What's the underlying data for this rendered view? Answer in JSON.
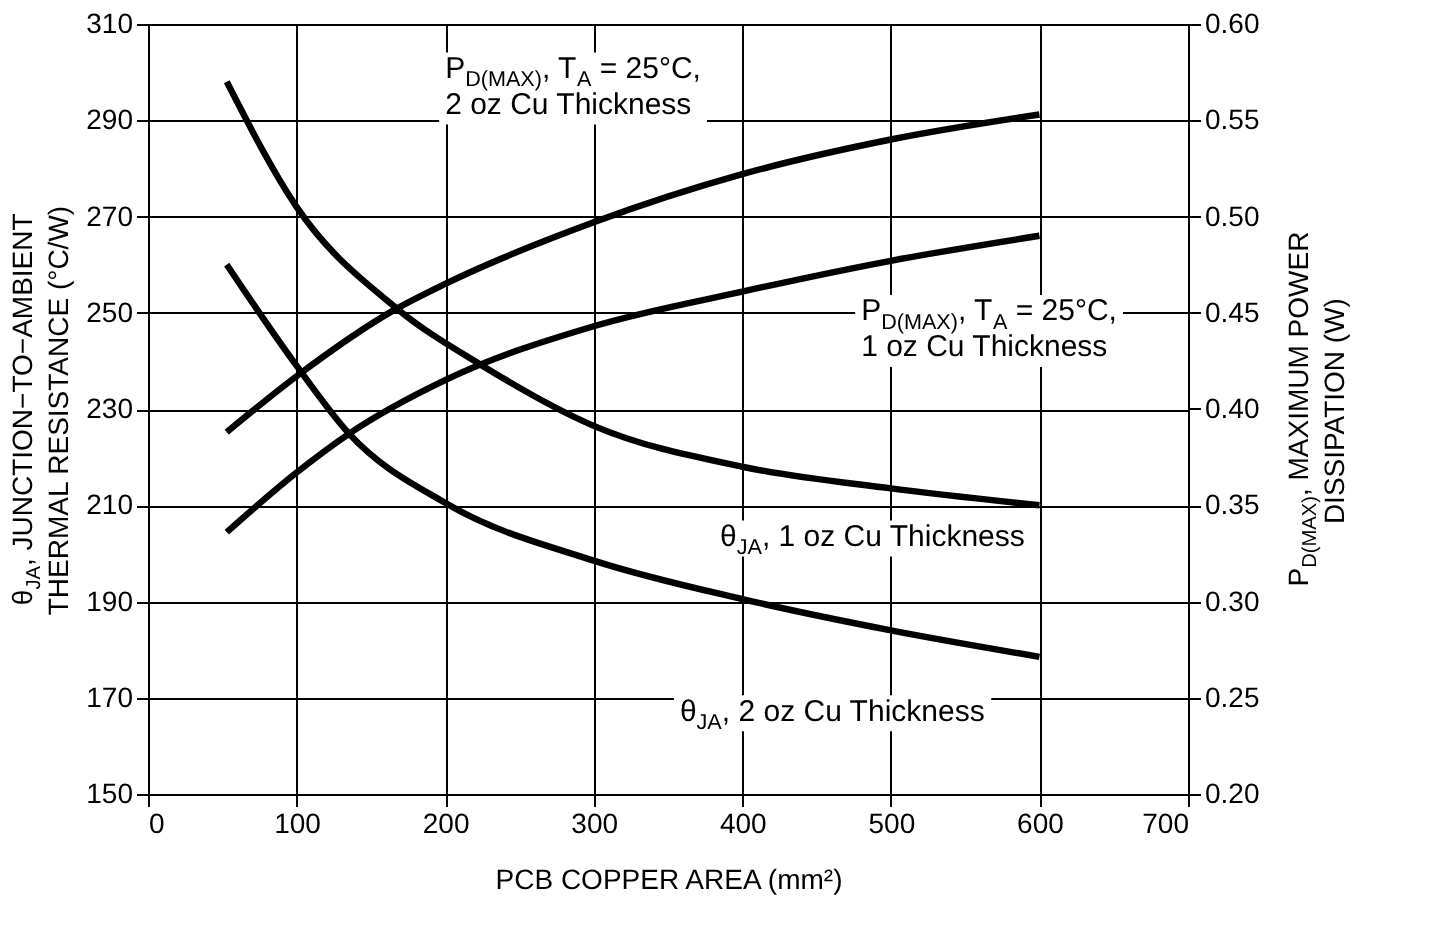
{
  "chart_data": {
    "type": "line",
    "xlabel": "PCB COPPER AREA (mm²)",
    "ylabel": "θ$_{JA}$, JUNCTION−TO−AMBIENT\nTHERMAL RESISTANCE (°C/W)",
    "y2label": "P$_{D(MAX)}$, MAXIMUM POWER\nDISSIPATION (W)",
    "xlim": [
      0,
      700
    ],
    "xticks": [
      0,
      100,
      200,
      300,
      400,
      500,
      600,
      700
    ],
    "ylim": [
      150,
      310
    ],
    "yticks": [
      150,
      170,
      190,
      210,
      230,
      250,
      270,
      290,
      310
    ],
    "y2lim": [
      0.2,
      0.6
    ],
    "y2ticks": [
      {
        "value": 0.2,
        "label": "0.20"
      },
      {
        "value": 0.25,
        "label": "0.25"
      },
      {
        "value": 0.3,
        "label": "0.30"
      },
      {
        "value": 0.35,
        "label": "0.35"
      },
      {
        "value": 0.4,
        "label": "0.40"
      },
      {
        "value": 0.45,
        "label": "0.45"
      },
      {
        "value": 0.5,
        "label": "0.50"
      },
      {
        "value": 0.55,
        "label": "0.55"
      },
      {
        "value": 0.6,
        "label": "0.60"
      }
    ],
    "grid": true,
    "legend": false,
    "marker": "none",
    "line_style": "solid",
    "series": [
      {
        "name": "P$_{D(MAX)}$, T$_{A}$ = 25°C,\n2 oz Cu Thickness",
        "color": "#000000",
        "axis": "y2",
        "x": [
          53,
          100,
          167,
          200,
          300,
          400,
          500,
          600
        ],
        "values": [
          0.388,
          0.417,
          0.452,
          0.465,
          0.497,
          0.522,
          0.54,
          0.553
        ]
      },
      {
        "name": "P$_{D(MAX)}$, T$_{A}$ = 25°C,\n1 oz Cu Thickness",
        "color": "#000000",
        "axis": "y2",
        "x": [
          53,
          100,
          135,
          200,
          300,
          400,
          500,
          600
        ],
        "values": [
          0.336,
          0.367,
          0.387,
          0.415,
          0.443,
          0.461,
          0.477,
          0.49
        ]
      },
      {
        "name": "θ$_{JA}$, 1 oz Cu Thickness",
        "color": "#000000",
        "x": [
          53,
          100,
          167,
          225,
          300,
          400,
          500,
          600
        ],
        "values": [
          298,
          272,
          251,
          239,
          226.5,
          218,
          213.5,
          210
        ]
      },
      {
        "name": "θ$_{JA}$, 2 oz Cu Thickness",
        "color": "#000000",
        "x": [
          53,
          100,
          135,
          200,
          300,
          400,
          500,
          600
        ],
        "values": [
          260,
          239,
          225,
          210.5,
          198.5,
          190.5,
          184,
          178.5
        ]
      }
    ]
  }
}
